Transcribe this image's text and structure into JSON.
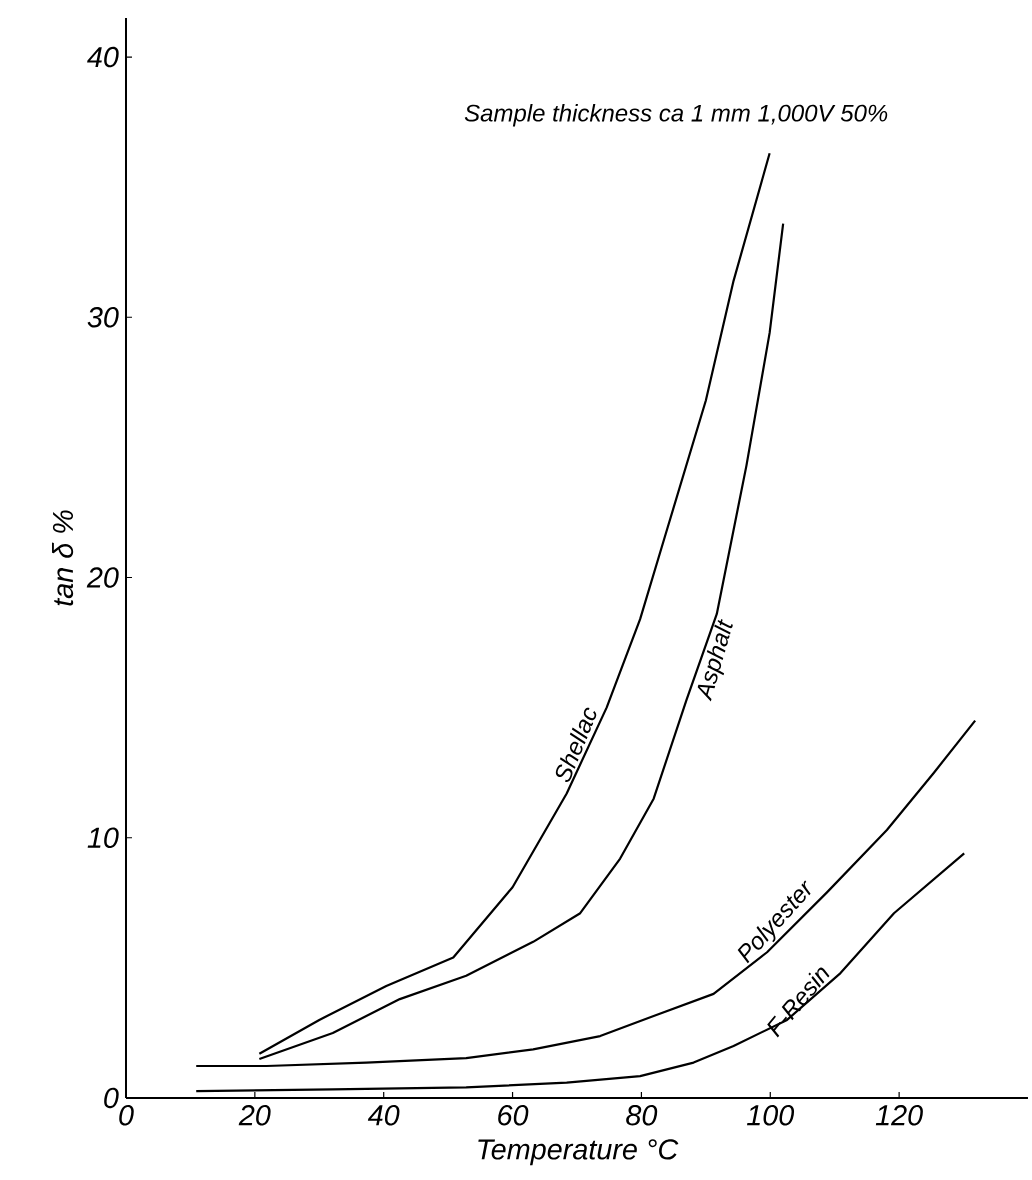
{
  "chart_data": {
    "type": "line",
    "xlabel": "Temperature °C",
    "ylabel": "tan δ %",
    "annotations": [
      "Sample thickness ca 1 mm 1,000V 50%"
    ],
    "xlim": [
      0,
      140
    ],
    "ylim": [
      0,
      41.5
    ],
    "xticks": [
      0,
      20,
      40,
      60,
      80,
      100,
      120
    ],
    "yticks": [
      0,
      10,
      20,
      30,
      40
    ],
    "grid": false,
    "legend": false,
    "marker": "none",
    "line_style": "solid",
    "series": [
      {
        "name": "Shellac",
        "color": "#000000",
        "x": [
          20.7,
          30,
          40.4,
          50.8,
          60,
          68.4,
          74.6,
          79.8,
          83.8,
          90,
          94.3,
          99.9
        ],
        "values": [
          1.7,
          3.0,
          4.3,
          5.4,
          8.1,
          11.7,
          15.0,
          18.4,
          21.7,
          26.8,
          31.4,
          36.3
        ]
      },
      {
        "name": "Asphalt",
        "color": "#000000",
        "x": [
          20.7,
          32.1,
          42.5,
          52.8,
          63.2,
          70.5,
          76.7,
          81.9,
          87,
          91.7,
          96.3,
          99.9,
          102
        ],
        "values": [
          1.5,
          2.5,
          3.8,
          4.7,
          6.0,
          7.1,
          9.2,
          11.5,
          15.3,
          18.6,
          24.3,
          29.4,
          33.6
        ]
      },
      {
        "name": "Polyester",
        "color": "#000000",
        "x": [
          10.9,
          21.8,
          37.3,
          52.8,
          63.2,
          73.6,
          81.9,
          91.2,
          99.5,
          108.8,
          118.1,
          125.4,
          131.8
        ],
        "values": [
          1.23,
          1.23,
          1.36,
          1.53,
          1.87,
          2.38,
          3.15,
          4.0,
          5.6,
          7.9,
          10.3,
          12.5,
          14.5
        ]
      },
      {
        "name": "F-Resin",
        "color": "#000000",
        "x": [
          10.9,
          32.1,
          52.8,
          68.4,
          79.8,
          88.1,
          94.3,
          102.6,
          110.9,
          119.2,
          130.1
        ],
        "values": [
          0.26,
          0.33,
          0.41,
          0.59,
          0.84,
          1.36,
          2.0,
          3.0,
          4.8,
          7.1,
          9.4
        ]
      }
    ]
  }
}
